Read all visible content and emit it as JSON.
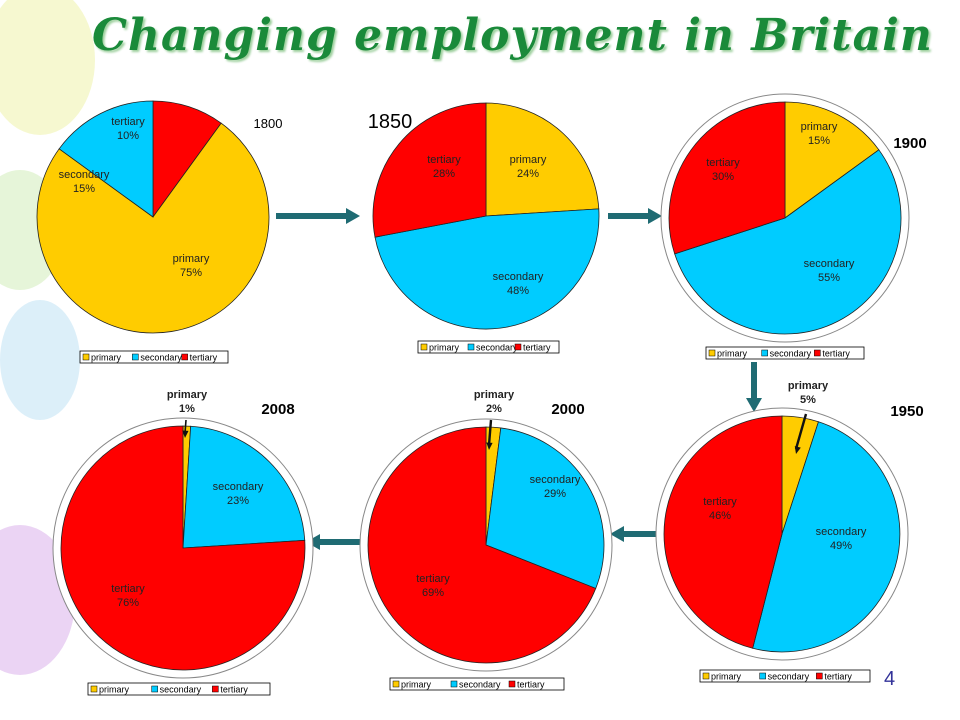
{
  "slide": {
    "title": "Changing employment in Britain",
    "page_number": "4"
  },
  "colors": {
    "primary": "#FFCC00",
    "secondary": "#00CCFF",
    "tertiary": "#FF0000",
    "arrow": "#1F6B73",
    "title": "#1A8A3A"
  },
  "chart_data": [
    {
      "type": "pie",
      "title": "1800",
      "slices": [
        {
          "label": "tertiary",
          "value": 10,
          "value_label": "10%"
        },
        {
          "label": "primary",
          "value": 75,
          "value_label": "75%"
        },
        {
          "label": "secondary",
          "value": 15,
          "value_label": "15%"
        }
      ],
      "legend": [
        "primary",
        "secondary",
        "tertiary"
      ]
    },
    {
      "type": "pie",
      "title": "1850",
      "slices": [
        {
          "label": "primary",
          "value": 24,
          "value_label": "24%"
        },
        {
          "label": "secondary",
          "value": 48,
          "value_label": "48%"
        },
        {
          "label": "tertiary",
          "value": 28,
          "value_label": "28%"
        }
      ],
      "legend": [
        "primary",
        "secondary",
        "tertiary"
      ]
    },
    {
      "type": "pie",
      "title": "1900",
      "slices": [
        {
          "label": "primary",
          "value": 15,
          "value_label": "15%"
        },
        {
          "label": "secondary",
          "value": 55,
          "value_label": "55%"
        },
        {
          "label": "tertiary",
          "value": 30,
          "value_label": "30%"
        }
      ],
      "legend": [
        "primary",
        "secondary",
        "tertiary"
      ]
    },
    {
      "type": "pie",
      "title": "1950",
      "slices": [
        {
          "label": "primary",
          "value": 5,
          "value_label": "5%"
        },
        {
          "label": "secondary",
          "value": 49,
          "value_label": "49%"
        },
        {
          "label": "tertiary",
          "value": 46,
          "value_label": "46%"
        }
      ],
      "legend": [
        "primary",
        "secondary",
        "tertiary"
      ]
    },
    {
      "type": "pie",
      "title": "2000",
      "slices": [
        {
          "label": "primary",
          "value": 2,
          "value_label": "2%"
        },
        {
          "label": "secondary",
          "value": 29,
          "value_label": "29%"
        },
        {
          "label": "tertiary",
          "value": 69,
          "value_label": "69%"
        }
      ],
      "legend": [
        "primary",
        "secondary",
        "tertiary"
      ]
    },
    {
      "type": "pie",
      "title": "2008",
      "slices": [
        {
          "label": "primary",
          "value": 1,
          "value_label": "1%"
        },
        {
          "label": "secondary",
          "value": 23,
          "value_label": "23%"
        },
        {
          "label": "tertiary",
          "value": 76,
          "value_label": "76%"
        }
      ],
      "legend": [
        "primary",
        "secondary",
        "tertiary"
      ]
    }
  ]
}
